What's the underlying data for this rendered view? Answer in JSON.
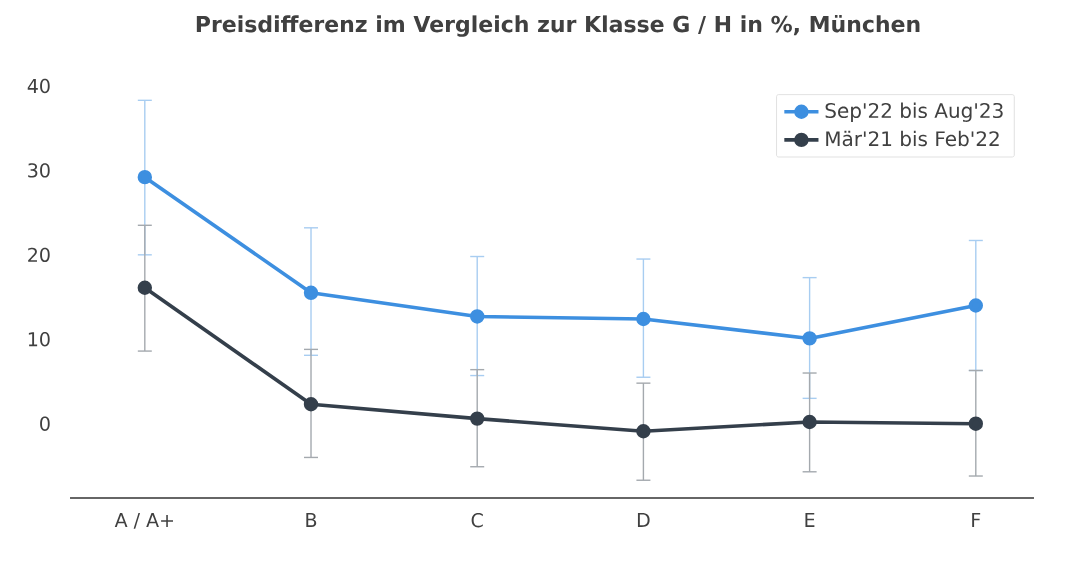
{
  "chart_data": {
    "type": "line",
    "title": "Preisdifferenz im Vergleich zur Klasse G / H in %, München",
    "categories": [
      "A / A+",
      "B",
      "C",
      "D",
      "E",
      "F"
    ],
    "series": [
      {
        "name": "Sep'22 bis Aug'23",
        "color": "#3d8fe0",
        "values": [
          29.2,
          15.5,
          12.7,
          12.4,
          10.1,
          14.0
        ],
        "errors": [
          [
            20.0,
            38.3
          ],
          [
            8.1,
            23.2
          ],
          [
            5.7,
            19.8
          ],
          [
            5.5,
            19.5
          ],
          [
            3.0,
            17.3
          ],
          [
            6.3,
            21.7
          ]
        ]
      },
      {
        "name": "Mär'21 bis Feb'22",
        "color": "#343f4b",
        "values": [
          16.1,
          2.3,
          0.6,
          -0.9,
          0.2,
          0.0
        ],
        "errors": [
          [
            8.6,
            23.5
          ],
          [
            -4.0,
            8.8
          ],
          [
            -5.1,
            6.4
          ],
          [
            -6.7,
            4.8
          ],
          [
            -5.7,
            6.0
          ],
          [
            -6.2,
            6.3
          ]
        ]
      }
    ],
    "ylim": [
      -8.8,
      40
    ],
    "yticks": [
      0,
      10,
      20,
      30,
      40
    ],
    "grid": false,
    "legend": "top right",
    "marker": "circle",
    "line_style": "solid"
  }
}
